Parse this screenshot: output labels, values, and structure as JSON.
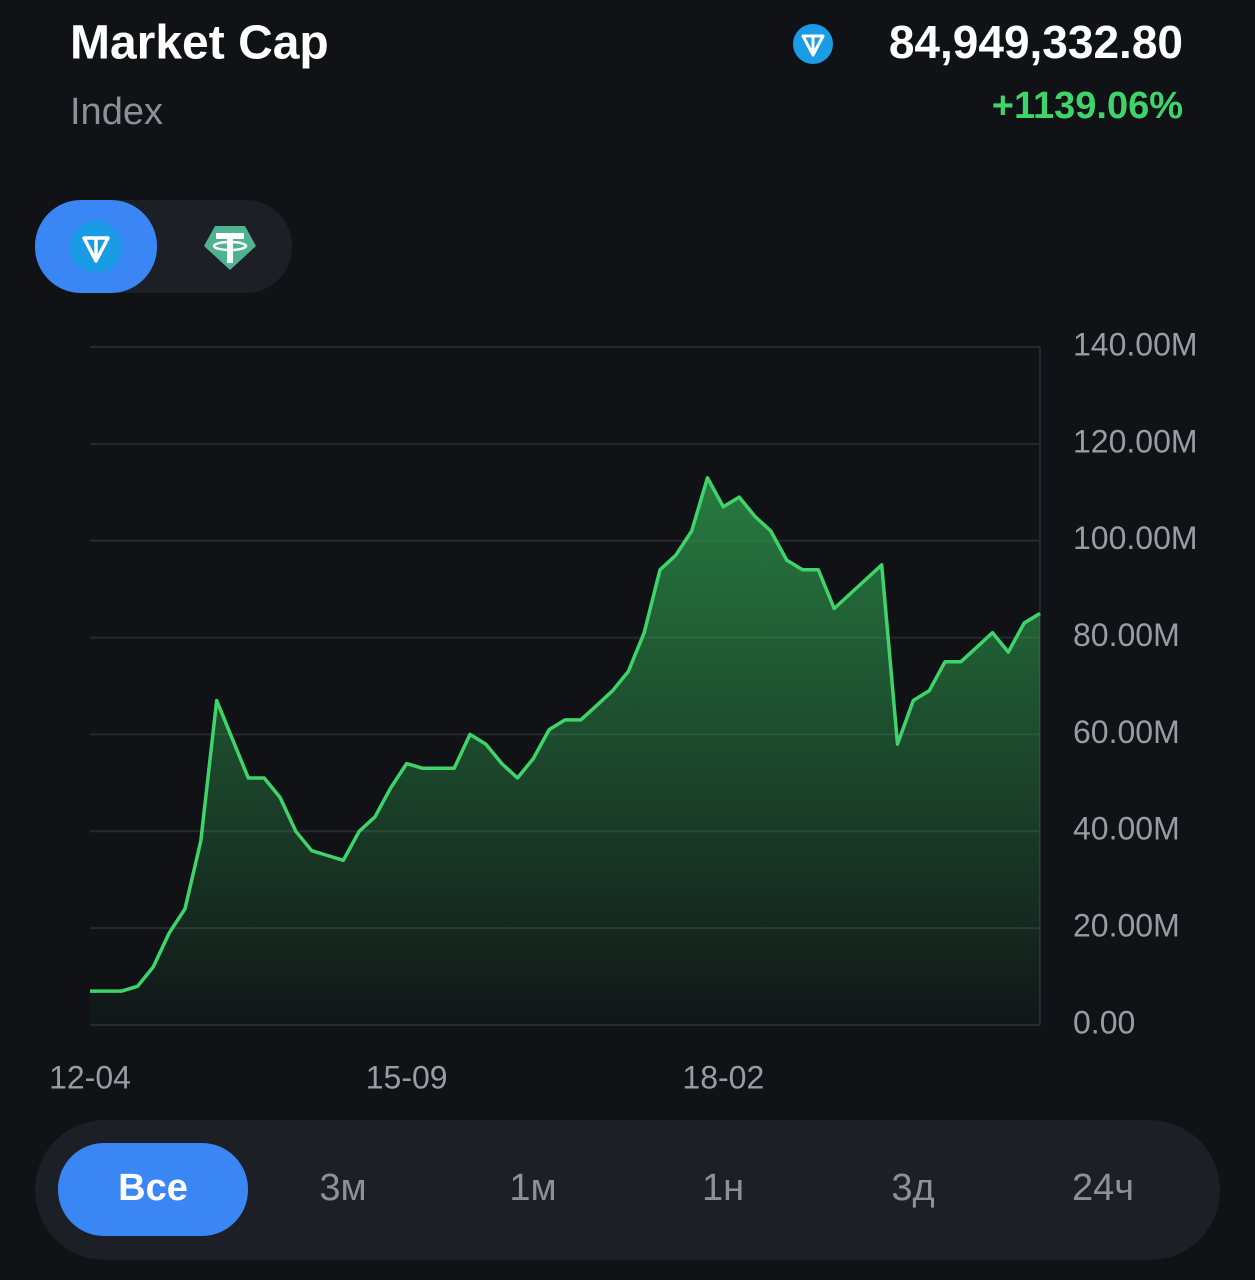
{
  "header": {
    "title": "Market Cap",
    "subtitle": "Index",
    "price": "84,949,332.80",
    "change": "+1139.06%"
  },
  "chart_data": {
    "type": "line",
    "categories": [
      "12-04",
      null,
      null,
      null,
      null,
      null,
      null,
      null,
      null,
      null,
      null,
      null,
      null,
      null,
      null,
      null,
      null,
      null,
      null,
      null,
      "15-09",
      null,
      null,
      null,
      null,
      null,
      null,
      null,
      null,
      null,
      null,
      null,
      null,
      null,
      null,
      null,
      null,
      null,
      null,
      null,
      "18-02",
      null,
      null,
      null,
      null,
      null,
      null,
      null,
      null,
      null,
      null,
      null,
      null,
      null,
      null,
      null,
      null,
      null,
      null,
      null,
      null
    ],
    "values": [
      7000000,
      7000000,
      7000000,
      8000000,
      12000000,
      19000000,
      24000000,
      38000000,
      67000000,
      59000000,
      51000000,
      51000000,
      47000000,
      40000000,
      36000000,
      35000000,
      34000000,
      40000000,
      43000000,
      49000000,
      54000000,
      53000000,
      53000000,
      53000000,
      60000000,
      58000000,
      54000000,
      51000000,
      55000000,
      61000000,
      63000000,
      63000000,
      66000000,
      69000000,
      73000000,
      81000000,
      94000000,
      97000000,
      102000000,
      113000000,
      107000000,
      109000000,
      105000000,
      102000000,
      96000000,
      94000000,
      94000000,
      86000000,
      89000000,
      92000000,
      95000000,
      58000000,
      67000000,
      69000000,
      75000000,
      75000000,
      78000000,
      81000000,
      77000000,
      83000000,
      85000000
    ],
    "color": "#3fd46a",
    "ylim": [
      0,
      140000000
    ],
    "yticks": [
      {
        "value": 0,
        "label": "0.00"
      },
      {
        "value": 20000000,
        "label": "20.00M"
      },
      {
        "value": 40000000,
        "label": "40.00M"
      },
      {
        "value": 60000000,
        "label": "60.00M"
      },
      {
        "value": 80000000,
        "label": "80.00M"
      },
      {
        "value": 100000000,
        "label": "100.00M"
      },
      {
        "value": 120000000,
        "label": "120.00M"
      },
      {
        "value": 140000000,
        "label": "140.00M"
      }
    ],
    "grid": true
  },
  "periods": [
    "Все",
    "3м",
    "1м",
    "1н",
    "3д",
    "24ч"
  ],
  "selected_period": 0
}
